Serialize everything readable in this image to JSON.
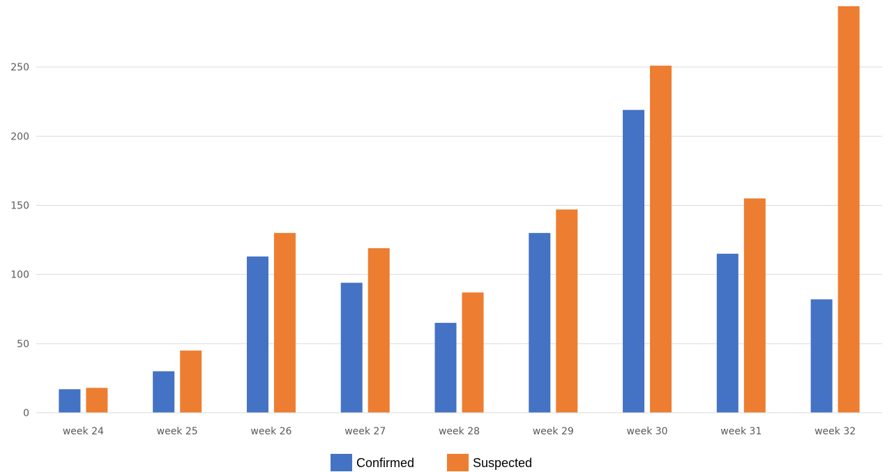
{
  "chart_data": {
    "type": "bar",
    "title": "",
    "xlabel": "",
    "ylabel": "",
    "categories": [
      "week 24",
      "week 25",
      "week 26",
      "week 27",
      "week 28",
      "week 29",
      "week 30",
      "week 31",
      "week 32"
    ],
    "series": [
      {
        "name": "Confirmed",
        "color": "#4472C4",
        "values": [
          17,
          30,
          113,
          94,
          65,
          130,
          219,
          115,
          82
        ]
      },
      {
        "name": "Suspected",
        "color": "#ED7D31",
        "values": [
          18,
          45,
          130,
          119,
          87,
          147,
          251,
          155,
          294
        ]
      }
    ],
    "ylim": [
      0,
      300
    ],
    "yticks": [
      0,
      50,
      100,
      150,
      200,
      250
    ],
    "grid": true,
    "gridColor": "#D9D9D9",
    "legend": "bottom"
  }
}
